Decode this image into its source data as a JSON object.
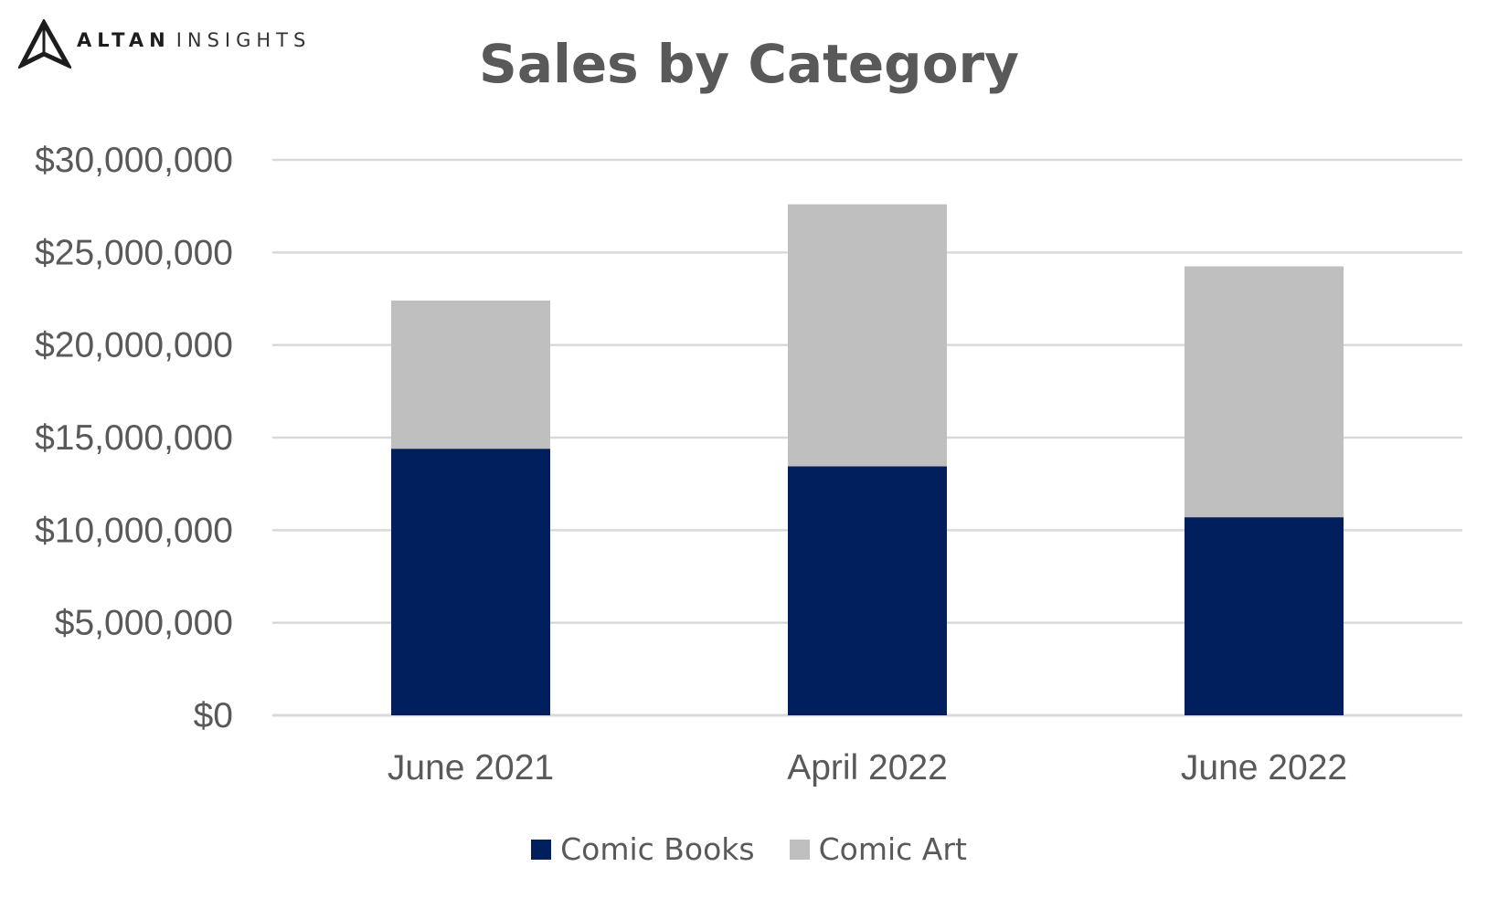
{
  "logo": {
    "word_bold": "ALTAN",
    "word_thin": "INSIGHTS"
  },
  "chart_data": {
    "type": "bar",
    "stacked": true,
    "title": "Sales by Category",
    "xlabel": "",
    "ylabel": "",
    "categories": [
      "June 2021",
      "April 2022",
      "June 2022"
    ],
    "series": [
      {
        "name": "Comic Books",
        "values": [
          14400000,
          13450000,
          10700000
        ],
        "color": "#001f5c"
      },
      {
        "name": "Comic Art",
        "values": [
          8000000,
          14150000,
          13550000
        ],
        "color": "#bfbfbf"
      }
    ],
    "ylim": [
      0,
      30000000
    ],
    "yticks": [
      0,
      5000000,
      10000000,
      15000000,
      20000000,
      25000000,
      30000000
    ],
    "ytick_labels": [
      "$0",
      "$5,000,000",
      "$10,000,000",
      "$15,000,000",
      "$20,000,000",
      "$25,000,000",
      "$30,000,000"
    ],
    "grid": true,
    "legend_position": "bottom",
    "gridline_color": "#d9d9d9"
  }
}
